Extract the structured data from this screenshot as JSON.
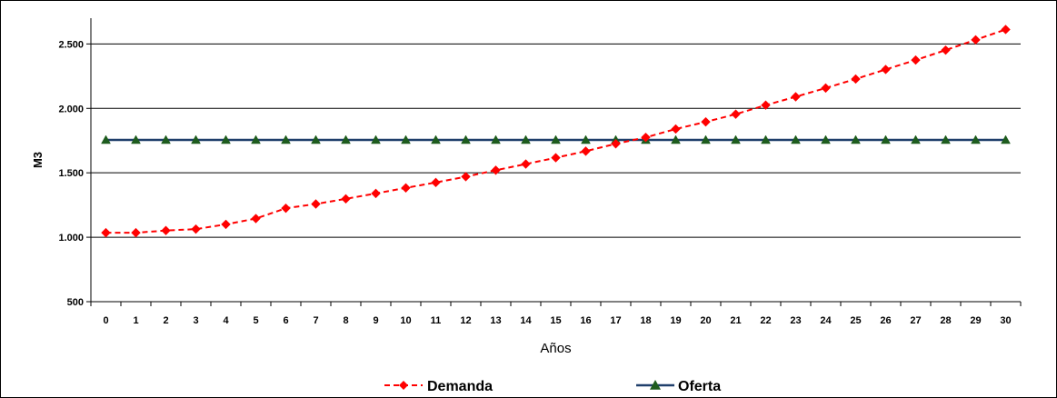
{
  "chart_data": {
    "type": "line",
    "title": "",
    "xlabel": "Años",
    "ylabel": "M3",
    "categories": [
      "0",
      "1",
      "2",
      "3",
      "4",
      "5",
      "6",
      "7",
      "8",
      "9",
      "10",
      "11",
      "12",
      "13",
      "14",
      "15",
      "16",
      "17",
      "18",
      "19",
      "20",
      "21",
      "22",
      "23",
      "24",
      "25",
      "26",
      "27",
      "28",
      "29",
      "30"
    ],
    "y_ticks": [
      "500",
      "1.000",
      "1.500",
      "2.000",
      "2.500"
    ],
    "ylim": [
      500,
      2700
    ],
    "grid": "horizontal",
    "legend_position": "bottom",
    "series": [
      {
        "name": "Demanda",
        "color": "#ff0000",
        "line_style": "dashed",
        "marker": "diamond",
        "values": [
          1035,
          1035,
          1052,
          1063,
          1100,
          1145,
          1225,
          1258,
          1298,
          1340,
          1383,
          1425,
          1470,
          1520,
          1568,
          1617,
          1668,
          1725,
          1775,
          1840,
          1895,
          1955,
          2025,
          2090,
          2158,
          2228,
          2302,
          2375,
          2452,
          2532,
          2612
        ]
      },
      {
        "name": "Oferta",
        "color": "#1f3f6b",
        "marker_color": "#1e5c1e",
        "line_style": "solid",
        "marker": "triangle",
        "values": [
          1755,
          1755,
          1755,
          1755,
          1755,
          1755,
          1755,
          1755,
          1755,
          1755,
          1755,
          1755,
          1755,
          1755,
          1755,
          1755,
          1755,
          1755,
          1755,
          1755,
          1755,
          1755,
          1755,
          1755,
          1755,
          1755,
          1755,
          1755,
          1755,
          1755,
          1755
        ]
      }
    ]
  }
}
